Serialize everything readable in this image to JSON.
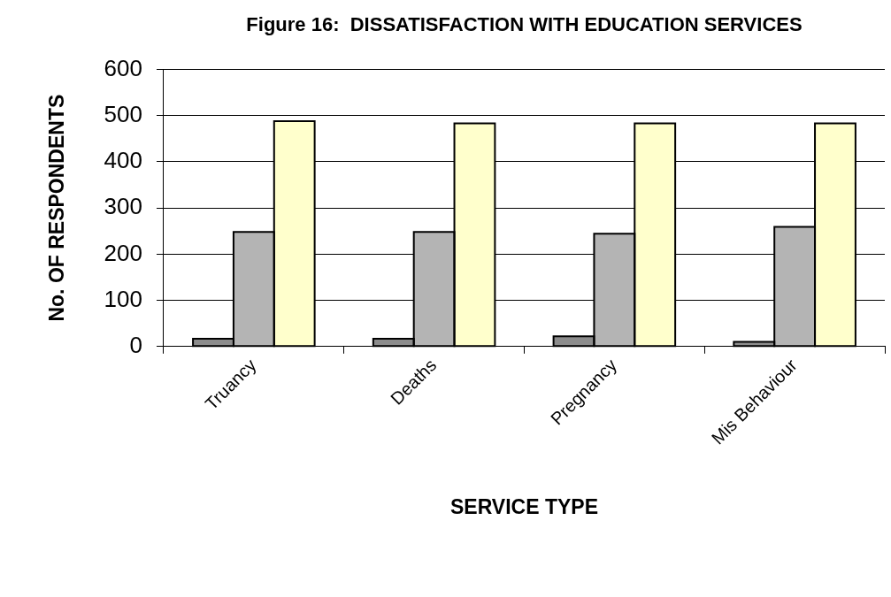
{
  "chart_data": {
    "type": "bar",
    "title": "Figure 16:  DISSATISFACTION WITH EDUCATION SERVICES",
    "xlabel": "SERVICE TYPE",
    "ylabel": "No. OF RESPONDENTS",
    "categories": [
      "Truancy",
      "Deaths",
      "Pregnancy",
      "Mis Behaviour"
    ],
    "series": [
      {
        "color": "#8c8c8c",
        "values": [
          17,
          17,
          22,
          10
        ]
      },
      {
        "color": "#b4b4b4",
        "values": [
          248,
          248,
          244,
          259
        ]
      },
      {
        "color": "#ffffcc",
        "values": [
          488,
          483,
          483,
          483
        ]
      }
    ],
    "ylim": [
      0,
      600
    ],
    "yticks": [
      0,
      100,
      200,
      300,
      400,
      500,
      600
    ],
    "grid": "y",
    "legend": false
  }
}
